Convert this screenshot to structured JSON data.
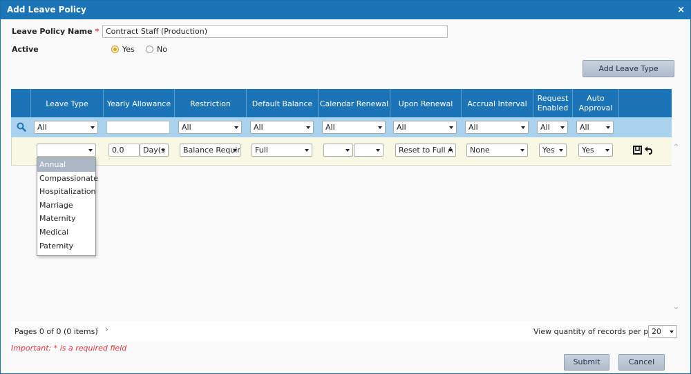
{
  "dialog": {
    "title": "Add Leave Policy",
    "close_icon": "×"
  },
  "form": {
    "policy_name_label": "Leave Policy Name",
    "required_mark": "*",
    "policy_name_value": "Contract Staff (Production)",
    "active_label": "Active",
    "active_yes": "Yes",
    "active_no": "No",
    "active_selected": "Yes"
  },
  "toolbar": {
    "add_leave_type_label": "Add Leave Type"
  },
  "grid": {
    "columns": [
      {
        "label": "Leave Type"
      },
      {
        "label": "Yearly Allowance"
      },
      {
        "label": "Restriction"
      },
      {
        "label": "Default Balance"
      },
      {
        "label": "Calendar Renewal"
      },
      {
        "label": "Upon Renewal"
      },
      {
        "label": "Accrual Interval"
      },
      {
        "label": "Request Enabled"
      },
      {
        "label": "Auto Approval"
      }
    ],
    "filters": {
      "leave_type": "All",
      "yearly_allowance": "",
      "restriction": "All",
      "default_balance": "All",
      "calendar_renewal": "All",
      "upon_renewal": "All",
      "accrual_interval": "All",
      "request_enabled": "All",
      "auto_approval": "All"
    },
    "edit_row": {
      "leave_type": "",
      "allowance_value": "0.0",
      "allowance_unit": "Day(s",
      "restriction": "Balance Requir",
      "default_balance": "Full",
      "calendar_renewal_a": "",
      "calendar_renewal_b": "",
      "upon_renewal": "Reset to Full A",
      "accrual_interval": "None",
      "request_enabled": "Yes",
      "auto_approval": "Yes"
    },
    "leave_type_options": [
      "Annual",
      "Compassionate",
      "Hospitalization",
      "Marriage",
      "Maternity",
      "Medical",
      "Paternity"
    ],
    "leave_type_highlighted": "Annual"
  },
  "pager": {
    "info": "Pages 0 of 0 (0 items)",
    "prev": "‹",
    "next": "›",
    "per_page_label": "View quantity of records per page",
    "per_page_value": "20"
  },
  "footer": {
    "important_note": "Important: * is a required field",
    "submit_label": "Submit",
    "cancel_label": "Cancel"
  },
  "colors": {
    "header_blue": "#1b74b5",
    "filter_row": "#a9d2ee",
    "edit_row": "#f8f9e4",
    "required_red": "#e0393e"
  }
}
